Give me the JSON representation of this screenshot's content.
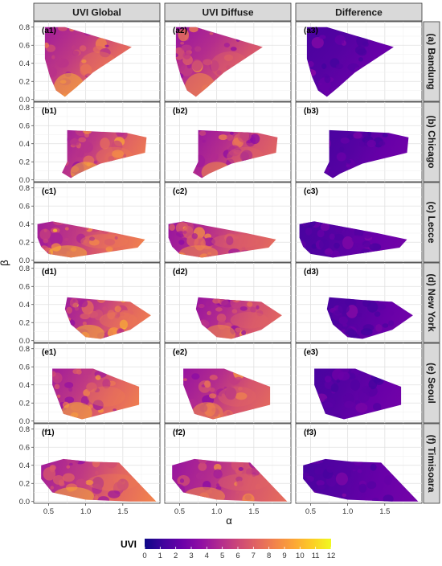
{
  "chart_data": {
    "type": "heatmap",
    "columns": [
      "UVI Global",
      "UVI Diffuse",
      "Difference"
    ],
    "rows": [
      "(a) Bandung",
      "(b) Chicago",
      "(c) Lecce",
      "(d) New York",
      "(e) Seoul",
      "(f) Timisoara"
    ],
    "row_letters": [
      "a",
      "b",
      "c",
      "d",
      "e",
      "f"
    ],
    "xlabel": "α",
    "ylabel": "β",
    "x_ticks": [
      "0.5",
      "1.0",
      "1.5"
    ],
    "x_tick_values": [
      0.5,
      1.0,
      1.5
    ],
    "xlim": [
      0.3,
      2.0
    ],
    "y_ticks": [
      "0.0",
      "0.2",
      "0.4",
      "0.6",
      "0.8"
    ],
    "y_tick_values": [
      0.0,
      0.2,
      0.4,
      0.6,
      0.8
    ],
    "ylim": [
      -0.02,
      0.86
    ],
    "grid": true,
    "legend": {
      "title": "UVI",
      "position": "bottom",
      "min": 0,
      "max": 12,
      "ticks": [
        "0",
        "1",
        "2",
        "3",
        "4",
        "5",
        "6",
        "7",
        "8",
        "9",
        "10",
        "11",
        "12"
      ],
      "colormap": "plasma"
    },
    "hull_polygons": {
      "a": [
        [
          0.45,
          0.8
        ],
        [
          0.72,
          0.8
        ],
        [
          1.62,
          0.58
        ],
        [
          1.1,
          0.3
        ],
        [
          0.88,
          0.14
        ],
        [
          0.72,
          0.03
        ],
        [
          0.6,
          0.1
        ],
        [
          0.52,
          0.25
        ],
        [
          0.45,
          0.45
        ]
      ],
      "b": [
        [
          0.75,
          0.55
        ],
        [
          1.55,
          0.52
        ],
        [
          1.82,
          0.47
        ],
        [
          1.8,
          0.3
        ],
        [
          1.2,
          0.18
        ],
        [
          0.9,
          0.07
        ],
        [
          0.8,
          0.02
        ],
        [
          0.68,
          0.08
        ],
        [
          0.75,
          0.2
        ]
      ],
      "c": [
        [
          0.35,
          0.4
        ],
        [
          0.55,
          0.43
        ],
        [
          1.4,
          0.3
        ],
        [
          1.8,
          0.23
        ],
        [
          1.7,
          0.14
        ],
        [
          0.8,
          0.03
        ],
        [
          0.5,
          0.07
        ],
        [
          0.4,
          0.15
        ],
        [
          0.35,
          0.25
        ]
      ],
      "d": [
        [
          0.75,
          0.48
        ],
        [
          1.2,
          0.45
        ],
        [
          1.6,
          0.43
        ],
        [
          1.88,
          0.28
        ],
        [
          1.6,
          0.12
        ],
        [
          1.2,
          0.02
        ],
        [
          1.0,
          0.04
        ],
        [
          0.8,
          0.18
        ],
        [
          0.72,
          0.35
        ]
      ],
      "e": [
        [
          0.55,
          0.58
        ],
        [
          1.1,
          0.58
        ],
        [
          1.4,
          0.48
        ],
        [
          1.72,
          0.38
        ],
        [
          1.72,
          0.18
        ],
        [
          1.1,
          0.05
        ],
        [
          0.95,
          0.02
        ],
        [
          0.7,
          0.08
        ],
        [
          0.55,
          0.4
        ]
      ],
      "f": [
        [
          0.4,
          0.4
        ],
        [
          0.7,
          0.47
        ],
        [
          1.05,
          0.44
        ],
        [
          1.45,
          0.43
        ],
        [
          1.95,
          0.0
        ],
        [
          1.6,
          0.0
        ],
        [
          1.0,
          0.02
        ],
        [
          0.55,
          0.1
        ],
        [
          0.4,
          0.25
        ]
      ]
    }
  }
}
